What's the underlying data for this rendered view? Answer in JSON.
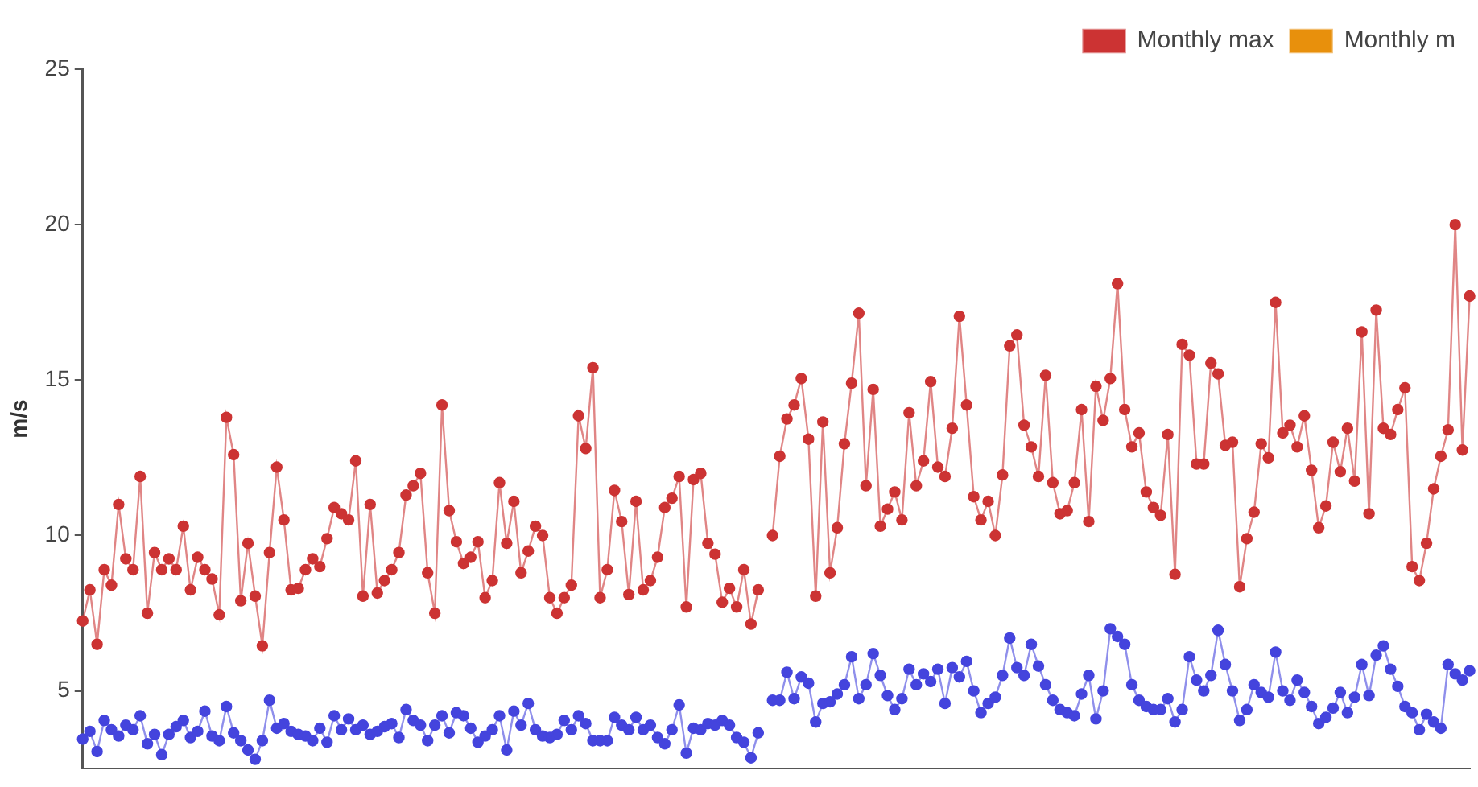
{
  "chart_data": {
    "type": "line",
    "ylabel": "m/s",
    "legend": "top right",
    "marker": "circle",
    "grid": false,
    "tick_labels": "y",
    "ylim": [
      2.5,
      25
    ],
    "yticks": [
      5,
      10,
      15,
      20,
      25
    ],
    "categories": [
      null,
      null,
      null,
      null,
      null,
      null,
      null,
      null,
      null,
      null,
      null,
      null,
      null,
      null,
      null,
      null,
      null,
      null,
      null,
      null,
      null,
      null,
      null,
      null,
      null,
      null,
      null,
      null,
      null,
      null,
      null,
      null,
      null,
      null,
      null,
      null,
      null,
      null,
      null,
      null,
      null,
      null,
      null,
      null,
      null,
      null,
      null,
      null,
      null,
      null,
      null,
      null,
      null,
      null,
      null,
      null,
      null,
      null,
      null,
      null,
      null,
      null,
      null,
      null,
      null,
      null,
      null,
      null,
      null,
      null,
      null,
      null,
      null,
      null,
      null,
      null,
      null,
      null,
      null,
      null,
      null,
      null,
      null,
      null,
      null,
      null,
      null,
      null,
      null,
      null,
      null,
      null,
      null,
      null,
      null,
      null,
      null,
      null,
      null,
      null,
      null,
      null,
      null,
      null,
      null,
      null,
      null,
      null,
      null,
      null,
      null,
      null,
      null,
      null,
      null,
      null,
      null,
      null,
      null,
      null,
      null,
      null,
      null,
      null,
      null,
      null,
      null,
      null,
      null,
      null,
      null,
      null,
      null,
      null,
      null,
      null,
      null,
      null,
      null,
      null,
      null,
      null,
      null,
      null,
      null,
      null,
      null,
      null,
      null,
      null,
      null,
      null,
      null,
      null,
      null,
      null,
      null,
      null,
      null,
      null,
      null,
      null,
      null,
      null,
      null,
      null,
      null,
      null,
      null,
      null,
      null,
      null,
      null,
      null,
      null,
      null,
      null,
      null,
      null,
      null,
      null,
      null,
      null,
      null,
      null,
      null,
      null,
      null,
      null,
      null,
      null,
      null,
      null,
      null
    ],
    "series": [
      {
        "name": "Monthly max",
        "color": "#cc3333",
        "values": [
          7.25,
          8.25,
          6.5,
          8.9,
          8.4,
          11.0,
          9.25,
          8.9,
          11.9,
          7.5,
          9.45,
          8.9,
          9.25,
          8.9,
          10.3,
          8.25,
          9.3,
          8.9,
          8.6,
          7.45,
          13.8,
          12.6,
          7.9,
          9.75,
          8.05,
          6.45,
          9.45,
          12.2,
          10.5,
          8.25,
          8.3,
          8.9,
          9.25,
          9.0,
          9.9,
          10.9,
          10.7,
          10.5,
          12.4,
          8.05,
          11.0,
          8.15,
          8.55,
          8.9,
          9.45,
          11.3,
          11.6,
          12.0,
          8.8,
          7.5,
          14.2,
          10.8,
          9.8,
          9.1,
          9.3,
          9.8,
          8.0,
          8.55,
          11.7,
          9.75,
          11.1,
          8.8,
          9.5,
          10.3,
          10.0,
          8.0,
          7.5,
          8.0,
          8.4,
          13.85,
          12.8,
          15.4,
          8.0,
          8.9,
          11.45,
          10.45,
          8.1,
          11.1,
          8.25,
          8.55,
          9.3,
          10.9,
          11.2,
          11.9,
          7.7,
          11.8,
          12.0,
          9.75,
          9.4,
          7.85,
          8.3,
          7.7,
          8.9,
          7.15,
          8.25,
          null,
          null,
          null,
          null,
          null,
          null,
          null,
          null,
          null,
          null,
          null,
          null,
          null,
          null,
          null,
          null,
          null,
          null,
          null,
          null,
          null,
          null,
          null,
          null,
          null,
          null,
          null,
          null,
          null,
          null,
          null,
          null,
          null,
          null,
          null,
          null,
          null,
          null,
          null,
          null,
          null,
          null,
          null,
          null,
          null,
          null,
          null,
          null,
          null,
          null,
          null,
          null,
          null,
          null,
          null,
          null,
          null,
          null,
          null,
          null,
          null,
          null,
          null,
          null,
          null,
          null,
          null,
          null,
          null,
          null,
          null,
          null,
          null,
          null,
          null,
          null,
          null,
          null,
          null,
          null,
          null,
          null,
          null,
          null,
          null,
          null,
          null,
          null,
          null,
          null,
          null,
          null,
          null,
          null,
          null,
          null,
          null,
          null,
          null
        ]
      },
      {
        "color": "#cc3333",
        "values": [
          null,
          null,
          null,
          null,
          null,
          null,
          null,
          null,
          null,
          null,
          null,
          null,
          null,
          null,
          null,
          null,
          null,
          null,
          null,
          null,
          null,
          null,
          null,
          null,
          null,
          null,
          null,
          null,
          null,
          null,
          null,
          null,
          null,
          null,
          null,
          null,
          null,
          null,
          null,
          null,
          null,
          null,
          null,
          null,
          null,
          null,
          null,
          null,
          null,
          null,
          null,
          null,
          null,
          null,
          null,
          null,
          null,
          null,
          null,
          null,
          null,
          null,
          null,
          null,
          null,
          null,
          null,
          null,
          null,
          null,
          null,
          null,
          null,
          null,
          null,
          null,
          null,
          null,
          null,
          null,
          null,
          null,
          null,
          null,
          null,
          null,
          null,
          null,
          null,
          null,
          null,
          null,
          null,
          null,
          null,
          null,
          10.0,
          12.55,
          13.75,
          14.2,
          15.05,
          13.1,
          8.05,
          13.65,
          8.8,
          10.25,
          12.95,
          14.9,
          17.15,
          11.6,
          14.7,
          10.3,
          10.85,
          11.4,
          10.5,
          13.95,
          11.6,
          12.4,
          14.95,
          12.2,
          11.9,
          13.45,
          17.05,
          14.2,
          11.25,
          10.5,
          11.1,
          10.0,
          11.95,
          16.1,
          16.45,
          13.55,
          12.85,
          11.9,
          15.15,
          11.7,
          10.7,
          10.8,
          11.7,
          14.05,
          10.45,
          14.8,
          13.7,
          15.05,
          18.1,
          14.05,
          12.85,
          13.3,
          11.4,
          10.9,
          10.65,
          13.25,
          8.75,
          16.15,
          15.8,
          12.3,
          12.3,
          15.55,
          15.2,
          12.9,
          13.0,
          8.35,
          9.9,
          10.75,
          12.95,
          12.5,
          17.5,
          13.3,
          13.55,
          12.85,
          13.85,
          12.1,
          10.25,
          10.95,
          13.0,
          12.05,
          13.45,
          11.75,
          16.55,
          10.7,
          17.25,
          13.45,
          13.25,
          14.05,
          14.75,
          9.0,
          8.55,
          9.75,
          11.5,
          12.55,
          13.4,
          20.0,
          12.75,
          17.7
        ]
      },
      {
        "name": "Monthly m",
        "color": "#e8900c",
        "values": [
          null,
          null,
          null,
          null,
          null,
          null,
          null,
          null,
          null,
          null,
          null,
          null,
          null,
          null,
          null,
          null,
          null,
          null,
          null,
          null,
          null,
          null,
          null,
          null,
          null,
          null,
          null,
          null,
          null,
          null,
          null,
          null,
          null,
          null,
          null,
          null,
          null,
          null,
          null,
          null,
          null,
          null,
          null,
          null,
          null,
          null,
          null,
          null,
          null,
          null,
          null,
          null,
          null,
          null,
          null,
          null,
          null,
          null,
          null,
          null,
          null,
          null,
          null,
          null,
          null,
          null,
          null,
          null,
          null,
          null,
          null,
          null,
          null,
          null,
          null,
          null,
          null,
          null,
          null,
          null,
          null,
          null,
          null,
          null,
          null,
          null,
          null,
          null,
          null,
          null,
          null,
          null,
          null,
          null,
          null,
          null,
          null,
          null,
          null,
          null,
          null,
          null,
          null,
          null,
          null,
          null,
          null,
          null,
          null,
          null,
          null,
          null,
          null,
          null,
          null,
          null,
          null,
          null,
          null,
          null,
          null,
          null,
          null,
          null,
          null,
          null,
          null,
          null,
          null,
          null,
          null,
          null,
          null,
          null,
          null,
          null,
          null,
          null,
          null,
          null,
          null,
          null,
          null,
          null,
          null,
          null,
          null,
          null,
          null,
          null,
          null,
          null,
          null,
          null,
          null,
          null,
          null,
          null,
          null,
          null,
          null,
          null,
          null,
          null,
          null,
          null,
          null,
          null,
          null,
          null,
          null,
          null,
          null,
          null,
          null,
          null,
          null,
          null,
          null,
          null,
          null,
          null,
          null,
          null,
          null,
          null,
          null,
          null,
          null,
          null,
          null,
          null,
          null,
          null
        ]
      },
      {
        "color": "#4444dd",
        "values": [
          3.45,
          3.7,
          3.05,
          4.05,
          3.75,
          3.55,
          3.9,
          3.75,
          4.2,
          3.3,
          3.6,
          2.95,
          3.6,
          3.85,
          4.05,
          3.5,
          3.7,
          4.35,
          3.55,
          3.4,
          4.5,
          3.65,
          3.4,
          3.1,
          2.8,
          3.4,
          4.7,
          3.8,
          3.95,
          3.7,
          3.6,
          3.55,
          3.4,
          3.8,
          3.35,
          4.2,
          3.75,
          4.1,
          3.75,
          3.9,
          3.6,
          3.7,
          3.85,
          3.95,
          3.5,
          4.4,
          4.05,
          3.9,
          3.4,
          3.9,
          4.2,
          3.65,
          4.3,
          4.2,
          3.8,
          3.35,
          3.55,
          3.75,
          4.2,
          3.1,
          4.35,
          3.9,
          4.6,
          3.75,
          3.55,
          3.5,
          3.6,
          4.05,
          3.75,
          4.2,
          3.95,
          3.4,
          3.4,
          3.4,
          4.15,
          3.9,
          3.75,
          4.15,
          3.75,
          3.9,
          3.5,
          3.3,
          3.75,
          4.55,
          3.0,
          3.8,
          3.75,
          3.95,
          3.9,
          4.05,
          3.9,
          3.5,
          3.35,
          2.85,
          3.65,
          null,
          null,
          null,
          null,
          null,
          null,
          null,
          null,
          null,
          null,
          null,
          null,
          null,
          null,
          null,
          null,
          null,
          null,
          null,
          null,
          null,
          null,
          null,
          null,
          null,
          null,
          null,
          null,
          null,
          null,
          null,
          null,
          null,
          null,
          null,
          null,
          null,
          null,
          null,
          null,
          null,
          null,
          null,
          null,
          null,
          null,
          null,
          null,
          null,
          null,
          null,
          null,
          null,
          null,
          null,
          null,
          null,
          null,
          null,
          null,
          null,
          null,
          null,
          null,
          null,
          null,
          null,
          null,
          null,
          null,
          null,
          null,
          null,
          null,
          null,
          null,
          null,
          null,
          null,
          null,
          null,
          null,
          null,
          null,
          null,
          null,
          null,
          null,
          null,
          null,
          null,
          null,
          null,
          null,
          null,
          null,
          null,
          null,
          null
        ]
      },
      {
        "color": "#4444dd",
        "values": [
          null,
          null,
          null,
          null,
          null,
          null,
          null,
          null,
          null,
          null,
          null,
          null,
          null,
          null,
          null,
          null,
          null,
          null,
          null,
          null,
          null,
          null,
          null,
          null,
          null,
          null,
          null,
          null,
          null,
          null,
          null,
          null,
          null,
          null,
          null,
          null,
          null,
          null,
          null,
          null,
          null,
          null,
          null,
          null,
          null,
          null,
          null,
          null,
          null,
          null,
          null,
          null,
          null,
          null,
          null,
          null,
          null,
          null,
          null,
          null,
          null,
          null,
          null,
          null,
          null,
          null,
          null,
          null,
          null,
          null,
          null,
          null,
          null,
          null,
          null,
          null,
          null,
          null,
          null,
          null,
          null,
          null,
          null,
          null,
          null,
          null,
          null,
          null,
          null,
          null,
          null,
          null,
          null,
          null,
          null,
          null,
          4.7,
          4.7,
          5.6,
          4.75,
          5.45,
          5.25,
          4.0,
          4.6,
          4.65,
          4.9,
          5.2,
          6.1,
          4.75,
          5.2,
          6.2,
          5.5,
          4.85,
          4.4,
          4.75,
          5.7,
          5.2,
          5.55,
          5.3,
          5.7,
          4.6,
          5.75,
          5.45,
          5.95,
          5.0,
          4.3,
          4.6,
          4.8,
          5.5,
          6.7,
          5.75,
          5.5,
          6.5,
          5.8,
          5.2,
          4.7,
          4.4,
          4.3,
          4.2,
          4.9,
          5.5,
          4.1,
          5.0,
          7.0,
          6.75,
          6.5,
          5.2,
          4.7,
          4.5,
          4.4,
          4.4,
          4.75,
          4.0,
          4.4,
          6.1,
          5.35,
          5.0,
          5.5,
          6.95,
          5.85,
          5.0,
          4.05,
          4.4,
          5.2,
          4.95,
          4.8,
          6.25,
          5.0,
          4.7,
          5.35,
          4.95,
          4.5,
          3.95,
          4.15,
          4.45,
          4.95,
          4.3,
          4.8,
          5.85,
          4.85,
          6.15,
          6.45,
          5.7,
          5.15,
          4.5,
          4.3,
          3.75,
          4.25,
          4.0,
          3.8,
          5.85,
          5.55,
          5.35,
          5.65
        ]
      }
    ]
  }
}
